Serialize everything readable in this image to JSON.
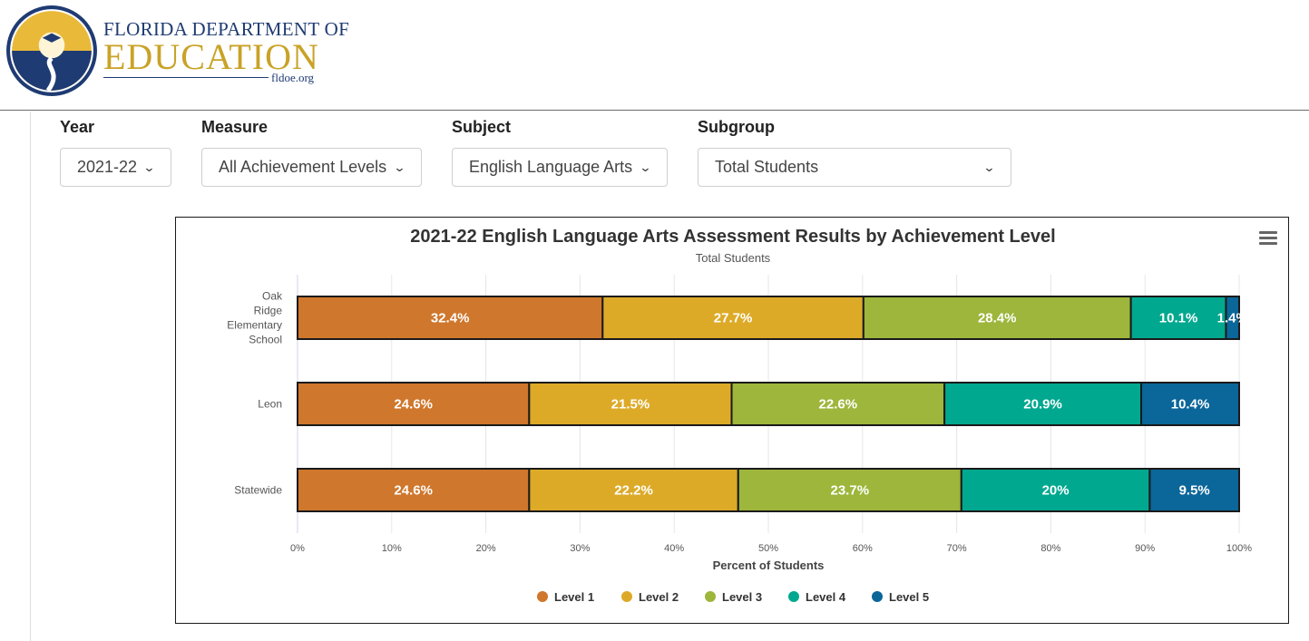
{
  "header": {
    "org_line1": "Florida Department of",
    "org_line2": "Education",
    "org_url": "fldoe.org"
  },
  "filters": [
    {
      "label": "Year",
      "value": "2021-22"
    },
    {
      "label": "Measure",
      "value": "All Achievement Levels"
    },
    {
      "label": "Subject",
      "value": "English Language Arts"
    },
    {
      "label": "Subgroup",
      "value": "Total Students"
    }
  ],
  "icons": {
    "menu": "hamburger-menu-icon",
    "select": "chevron-down-icon"
  },
  "chart_data": {
    "type": "bar",
    "orientation": "horizontal",
    "stacking": "percent",
    "title": "2021-22 English Language Arts Assessment Results by Achievement Level",
    "subtitle": "Total Students",
    "xlabel": "Percent of Students",
    "xlim": [
      0,
      100
    ],
    "x_ticks": [
      "0%",
      "10%",
      "20%",
      "30%",
      "40%",
      "50%",
      "60%",
      "70%",
      "80%",
      "90%",
      "100%"
    ],
    "categories": [
      "Oak Ridge Elementary School",
      "Leon",
      "Statewide"
    ],
    "series": [
      {
        "name": "Level 1",
        "color": "#cf772c",
        "values": [
          32.4,
          24.6,
          24.6
        ]
      },
      {
        "name": "Level 2",
        "color": "#ddaa28",
        "values": [
          27.7,
          21.5,
          22.2
        ]
      },
      {
        "name": "Level 3",
        "color": "#9db63b",
        "values": [
          28.4,
          22.6,
          23.7
        ]
      },
      {
        "name": "Level 4",
        "color": "#00a88f",
        "values": [
          10.1,
          20.9,
          20
        ]
      },
      {
        "name": "Level 5",
        "color": "#0b6699",
        "values": [
          1.4,
          10.4,
          9.5
        ]
      }
    ],
    "legend_position": "bottom",
    "grid": true
  }
}
